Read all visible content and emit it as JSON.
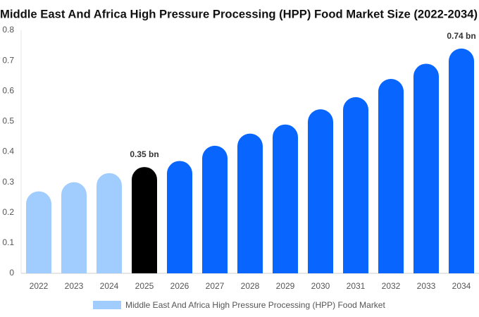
{
  "chart_data": {
    "type": "bar",
    "title": "Middle East And Africa High Pressure Processing (HPP) Food Market Size (2022-2034)",
    "categories": [
      "2022",
      "2023",
      "2024",
      "2025",
      "2026",
      "2027",
      "2028",
      "2029",
      "2030",
      "2031",
      "2032",
      "2033",
      "2034"
    ],
    "series": [
      {
        "name": "Middle East And Africa High Pressure Processing (HPP) Food Market",
        "color": "#a0cdfd",
        "values": [
          0.27,
          0.3,
          0.33,
          0.35,
          0.37,
          0.42,
          0.46,
          0.49,
          0.54,
          0.58,
          0.64,
          0.69,
          0.74
        ],
        "value_labels": [
          null,
          null,
          null,
          "0.35 bn",
          null,
          null,
          null,
          null,
          null,
          null,
          null,
          null,
          "0.74 bn"
        ],
        "colors": [
          "#a0cdfd",
          "#a0cdfd",
          "#a0cdfd",
          "#000000",
          "#0866ff",
          "#0866ff",
          "#0866ff",
          "#0866ff",
          "#0866ff",
          "#0866ff",
          "#0866ff",
          "#0866ff",
          "#0866ff"
        ]
      }
    ],
    "ylim": [
      0,
      0.8
    ],
    "yticks": [
      0,
      0.1,
      0.2,
      0.3,
      0.4,
      0.5,
      0.6,
      0.7,
      0.8
    ],
    "grid": false
  }
}
